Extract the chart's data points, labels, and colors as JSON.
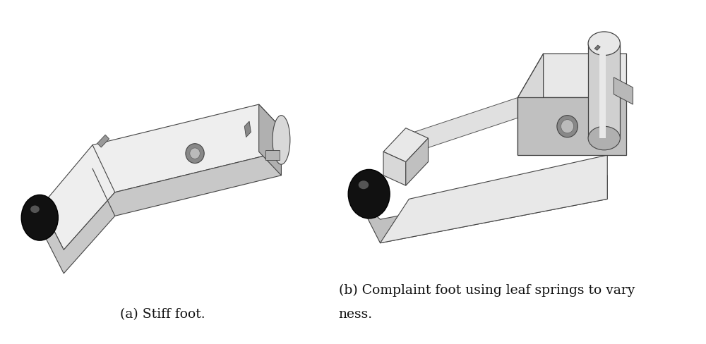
{
  "bg_color": "#ffffff",
  "caption_a": "(a) Stiff foot.",
  "caption_b_line1": "(b) Complaint foot using leaf springs to vary",
  "caption_b_line2": "ness.",
  "caption_fontsize": 13.5,
  "caption_font": "serif",
  "figsize": [
    10.0,
    4.88
  ],
  "dpi": 100
}
